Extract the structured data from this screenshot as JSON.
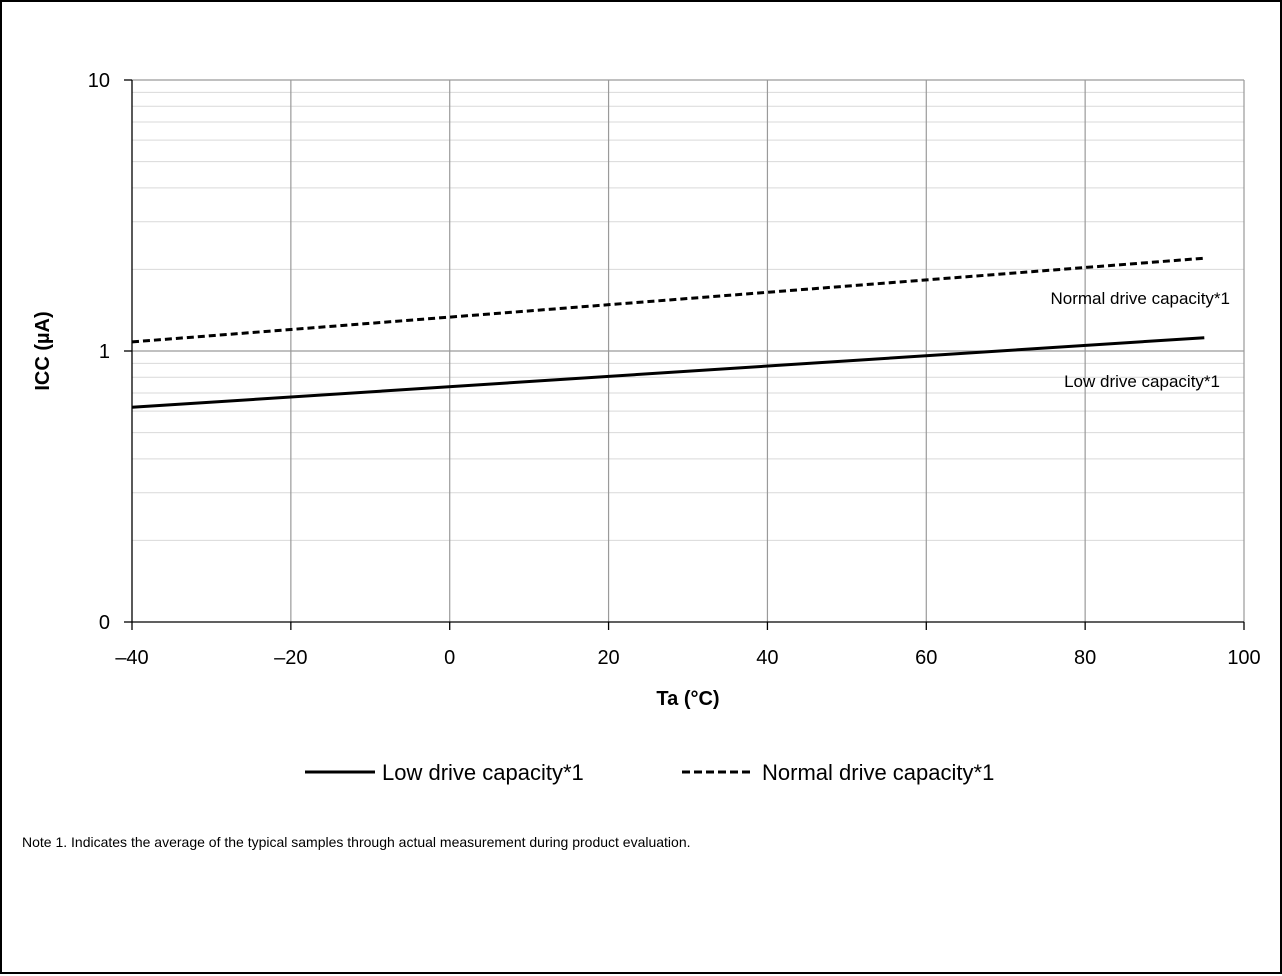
{
  "chart_data": {
    "type": "line",
    "title": "",
    "xlabel": "Ta (°C)",
    "ylabel": "ICC (µA)",
    "xlim": [
      -40,
      100
    ],
    "x_ticks": [
      -40,
      -20,
      0,
      20,
      40,
      60,
      80,
      100
    ],
    "x_tick_labels": [
      "–40",
      "–20",
      "0",
      "20",
      "40",
      "60",
      "80",
      "100"
    ],
    "y_scale": "log",
    "y_tick_labels": [
      "10",
      "1",
      "0"
    ],
    "grid": true,
    "legend_position": "bottom",
    "series": [
      {
        "name": "Low drive capacity*1",
        "style": "solid",
        "color": "#000000",
        "x": [
          -40,
          95
        ],
        "y": [
          0.62,
          1.12
        ]
      },
      {
        "name": "Normal drive capacity*1",
        "style": "dashed",
        "color": "#000000",
        "x": [
          -40,
          95
        ],
        "y": [
          1.08,
          2.2
        ]
      }
    ],
    "annotations": [
      {
        "text": "Normal drive capacity*1",
        "series": 1
      },
      {
        "text": "Low drive capacity*1",
        "series": 0
      }
    ]
  },
  "note": "Note 1.   Indicates the average of the typical samples through actual measurement during product evaluation."
}
